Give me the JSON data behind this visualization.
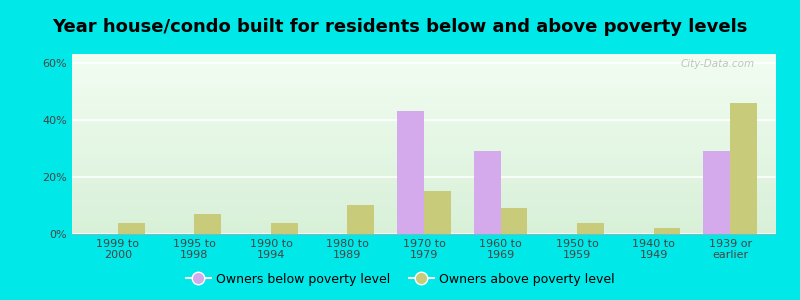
{
  "title": "Year house/condo built for residents below and above poverty levels",
  "categories": [
    "1999 to\n2000",
    "1995 to\n1998",
    "1990 to\n1994",
    "1980 to\n1989",
    "1970 to\n1979",
    "1960 to\n1969",
    "1950 to\n1959",
    "1940 to\n1949",
    "1939 or\nearlier"
  ],
  "below_poverty": [
    0,
    0,
    0,
    0,
    43,
    29,
    0,
    0,
    29
  ],
  "above_poverty": [
    4,
    7,
    4,
    10,
    15,
    9,
    4,
    2,
    46
  ],
  "below_color": "#d4aaec",
  "above_color": "#c8cc7a",
  "ylim": [
    0,
    63
  ],
  "yticks": [
    0,
    20,
    40,
    60
  ],
  "ytick_labels": [
    "0%",
    "20%",
    "40%",
    "60%"
  ],
  "outer_background": "#00e8e8",
  "plot_bg_top": "#e8f8e8",
  "plot_bg_bottom": "#f5fff5",
  "bar_width": 0.35,
  "legend_below_label": "Owners below poverty level",
  "legend_above_label": "Owners above poverty level",
  "title_fontsize": 13,
  "tick_fontsize": 8,
  "watermark": "City-Data.com"
}
